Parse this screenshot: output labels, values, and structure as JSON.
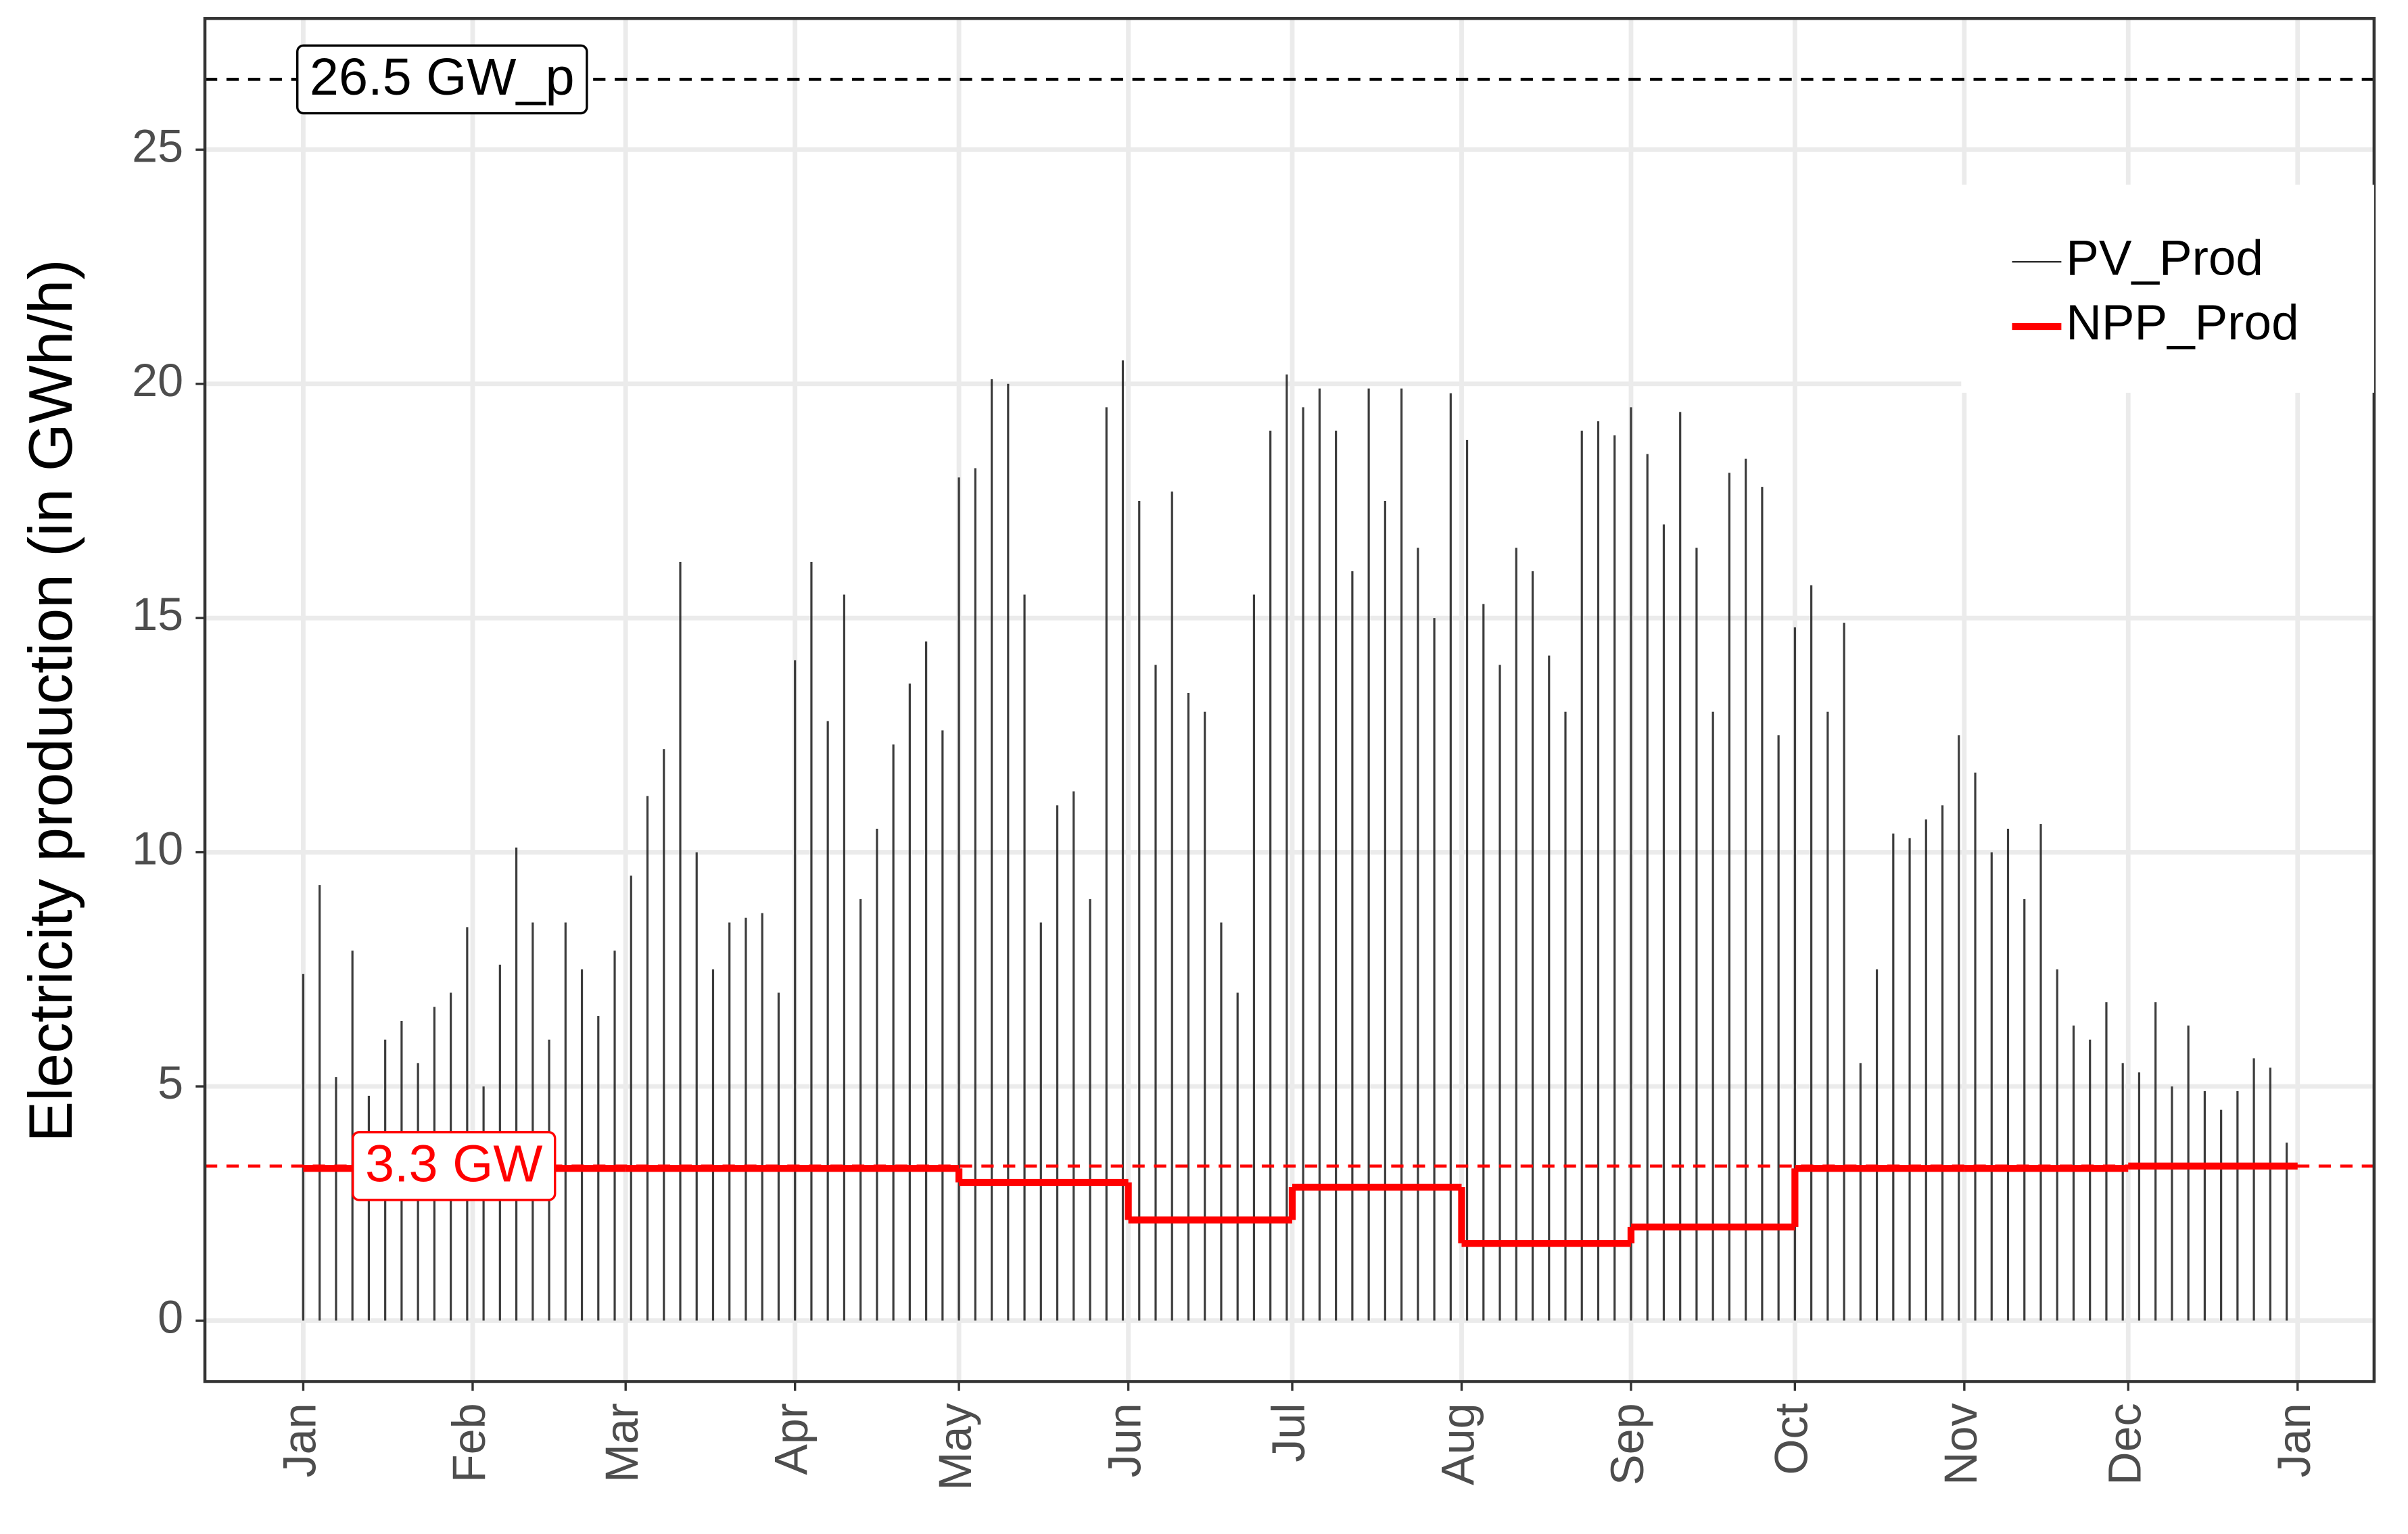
{
  "chart_data": {
    "type": "spike-step",
    "y_label": "Electricity production (in GWh/h)",
    "xlim": [
      -18,
      379
    ],
    "xticks": [
      {
        "value": 0,
        "label": "Jan"
      },
      {
        "value": 31,
        "label": "Feb"
      },
      {
        "value": 59,
        "label": "Mar"
      },
      {
        "value": 90,
        "label": "Apr"
      },
      {
        "value": 120,
        "label": "May"
      },
      {
        "value": 151,
        "label": "Jun"
      },
      {
        "value": 181,
        "label": "Jul"
      },
      {
        "value": 212,
        "label": "Aug"
      },
      {
        "value": 243,
        "label": "Sep"
      },
      {
        "value": 273,
        "label": "Oct"
      },
      {
        "value": 304,
        "label": "Nov"
      },
      {
        "value": 334,
        "label": "Dec"
      },
      {
        "value": 365,
        "label": "Jan"
      }
    ],
    "ylim": [
      -1.3,
      27.8
    ],
    "yticks": [
      0,
      5,
      10,
      15,
      20,
      25
    ],
    "grid": true,
    "legend": "top-right",
    "series": [
      {
        "name": "PV_Prod",
        "color": "#1a1a1a",
        "style": "spikes",
        "x": [
          0,
          3,
          6,
          9,
          12,
          15,
          18,
          21,
          24,
          27,
          30,
          33,
          36,
          39,
          42,
          45,
          48,
          51,
          54,
          57,
          60,
          63,
          66,
          69,
          72,
          75,
          78,
          81,
          84,
          87,
          90,
          93,
          96,
          99,
          102,
          105,
          108,
          111,
          114,
          117,
          120,
          123,
          126,
          129,
          132,
          135,
          138,
          141,
          144,
          147,
          150,
          153,
          156,
          159,
          162,
          165,
          168,
          171,
          174,
          177,
          180,
          183,
          186,
          189,
          192,
          195,
          198,
          201,
          204,
          207,
          210,
          213,
          216,
          219,
          222,
          225,
          228,
          231,
          234,
          237,
          240,
          243,
          246,
          249,
          252,
          255,
          258,
          261,
          264,
          267,
          270,
          273,
          276,
          279,
          282,
          285,
          288,
          291,
          294,
          297,
          300,
          303,
          306,
          309,
          312,
          315,
          318,
          321,
          324,
          327,
          330,
          333,
          336,
          339,
          342,
          345,
          348,
          351,
          354,
          357,
          360,
          363
        ],
        "values": [
          7.4,
          9.3,
          5.2,
          7.9,
          4.8,
          6.0,
          6.4,
          5.5,
          6.7,
          7.0,
          8.4,
          5.0,
          7.6,
          10.1,
          8.5,
          6.0,
          8.5,
          7.5,
          6.5,
          7.9,
          9.5,
          11.2,
          12.2,
          16.2,
          10.0,
          7.5,
          8.5,
          8.6,
          8.7,
          7.0,
          14.1,
          16.2,
          12.8,
          15.5,
          9.0,
          10.5,
          12.3,
          13.6,
          14.5,
          12.6,
          18.0,
          18.2,
          20.1,
          20.0,
          15.5,
          8.5,
          11.0,
          11.3,
          9.0,
          19.5,
          20.5,
          17.5,
          14.0,
          17.7,
          13.4,
          13.0,
          8.5,
          7.0,
          15.5,
          19.0,
          20.2,
          19.5,
          19.9,
          19.0,
          16.0,
          19.9,
          17.5,
          19.9,
          16.5,
          15.0,
          19.8,
          18.8,
          15.3,
          14.0,
          16.5,
          16.0,
          14.2,
          13.0,
          19.0,
          19.2,
          18.9,
          19.5,
          18.5,
          17.0,
          19.4,
          16.5,
          13.0,
          18.1,
          18.4,
          17.8,
          12.5,
          14.8,
          15.7,
          13.0,
          14.9,
          5.5,
          7.5,
          10.4,
          10.3,
          10.7,
          11.0,
          12.5,
          11.7,
          10.0,
          10.5,
          9.0,
          10.6,
          7.5,
          6.3,
          6.0,
          6.8,
          5.5,
          5.3,
          6.8,
          5.0,
          6.3,
          4.9,
          4.5,
          4.9,
          5.6,
          5.4,
          3.8
        ]
      },
      {
        "name": "NPP_Prod",
        "color": "#ff0000",
        "style": "step",
        "x": [
          0,
          31,
          59,
          90,
          120,
          151,
          181,
          212,
          243,
          273,
          304,
          334
        ],
        "values": [
          3.25,
          3.25,
          3.25,
          3.25,
          2.95,
          2.15,
          2.85,
          1.65,
          2.0,
          3.25,
          3.25,
          3.3
        ]
      }
    ],
    "reference_lines": [
      {
        "value": 26.5,
        "label": "26.5 GW_p",
        "color": "#000000"
      },
      {
        "value": 3.3,
        "label": "3.3 GW",
        "color": "#ff0000"
      }
    ]
  }
}
